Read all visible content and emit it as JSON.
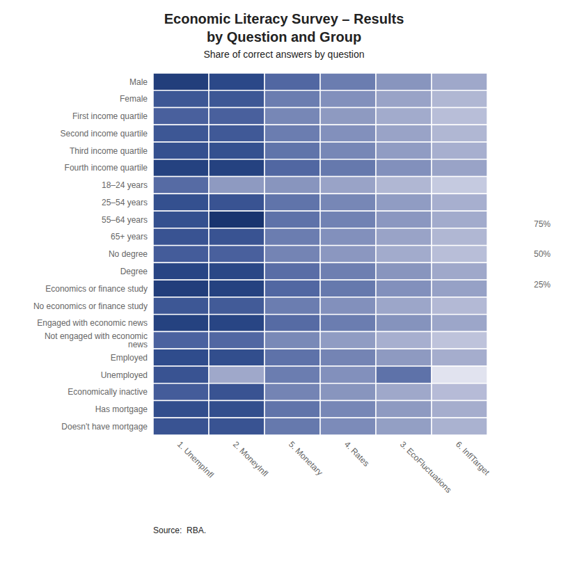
{
  "chart_data": {
    "type": "heatmap",
    "title": [
      "Economic Literacy Survey – Results",
      "by Question and Group"
    ],
    "subtitle": "Share of correct answers by question",
    "annotations": [
      "Source:  RBA."
    ],
    "rows": [
      "Male",
      "Female",
      "First income quartile",
      "Second income quartile",
      "Third income quartile",
      "Fourth income quartile",
      "18–24 years",
      "25–54 years",
      "55–64 years",
      "65+ years",
      "No degree",
      "Degree",
      "Economics or finance study",
      "No economics or finance study",
      "Engaged with economic news",
      "Not engaged with economic news",
      "Employed",
      "Unemployed",
      "Economically inactive",
      "Has mortgage",
      "Doesn't have mortgage"
    ],
    "columns": [
      "1. UnempInfl",
      "2. MoneyInfl",
      "5. Monetary",
      "4. Rates",
      "3. EcoFluctuations",
      "6. InflTarget"
    ],
    "values": [
      [
        0.82,
        0.76,
        0.6,
        0.5,
        0.4,
        0.32
      ],
      [
        0.68,
        0.68,
        0.5,
        0.42,
        0.34,
        0.26
      ],
      [
        0.63,
        0.63,
        0.46,
        0.38,
        0.31,
        0.23
      ],
      [
        0.68,
        0.67,
        0.5,
        0.42,
        0.34,
        0.26
      ],
      [
        0.72,
        0.72,
        0.54,
        0.46,
        0.37,
        0.29
      ],
      [
        0.8,
        0.8,
        0.6,
        0.52,
        0.42,
        0.34
      ],
      [
        0.58,
        0.38,
        0.4,
        0.34,
        0.26,
        0.18
      ],
      [
        0.72,
        0.7,
        0.54,
        0.46,
        0.37,
        0.29
      ],
      [
        0.72,
        0.88,
        0.55,
        0.48,
        0.39,
        0.31
      ],
      [
        0.7,
        0.7,
        0.5,
        0.42,
        0.34,
        0.26
      ],
      [
        0.65,
        0.63,
        0.47,
        0.39,
        0.31,
        0.23
      ],
      [
        0.78,
        0.77,
        0.57,
        0.49,
        0.4,
        0.32
      ],
      [
        0.82,
        0.8,
        0.6,
        0.52,
        0.42,
        0.35
      ],
      [
        0.68,
        0.66,
        0.5,
        0.42,
        0.33,
        0.25
      ],
      [
        0.8,
        0.78,
        0.58,
        0.5,
        0.41,
        0.33
      ],
      [
        0.62,
        0.6,
        0.45,
        0.37,
        0.29,
        0.21
      ],
      [
        0.74,
        0.73,
        0.55,
        0.47,
        0.38,
        0.3
      ],
      [
        0.7,
        0.32,
        0.5,
        0.42,
        0.55,
        0.08
      ],
      [
        0.65,
        0.7,
        0.47,
        0.4,
        0.32,
        0.24
      ],
      [
        0.73,
        0.73,
        0.54,
        0.46,
        0.38,
        0.3
      ],
      [
        0.7,
        0.7,
        0.52,
        0.44,
        0.36,
        0.28
      ]
    ],
    "colormap": [
      "#f7f7fb",
      "#d4d8e8",
      "#b3b9d5",
      "#8f9bc2",
      "#6b7db0",
      "#4a619e",
      "#2d4a8a",
      "#1a3570",
      "#0d2255"
    ],
    "colorbar": {
      "lim": [
        0.0,
        1.0
      ],
      "ticks": [
        {
          "value": 0.25,
          "label": "25%"
        },
        {
          "value": 0.5,
          "label": "50%"
        },
        {
          "value": 0.75,
          "label": "75%"
        }
      ]
    },
    "background_color": "#ffffff"
  }
}
